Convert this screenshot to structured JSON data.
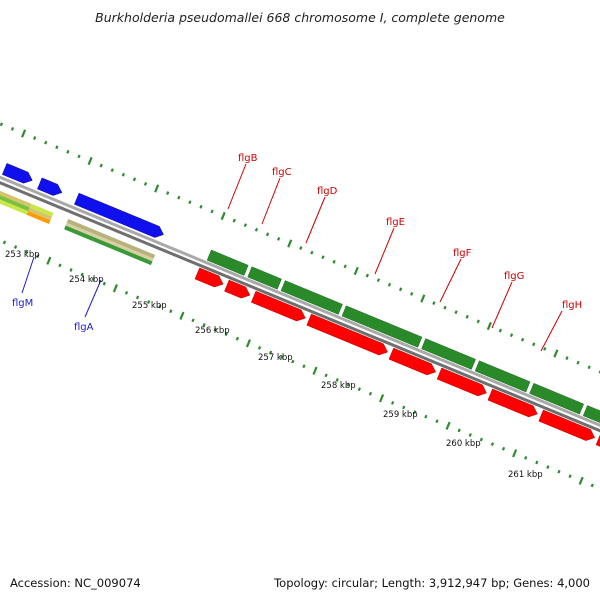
{
  "title": "Burkholderia pseudomallei 668 chromosome I, complete genome",
  "accession": "Accession: NC_009074",
  "summary": "Topology: circular; Length: 3,912,947 bp; Genes: 4,000",
  "colors": {
    "backbone": "#8f8f8f",
    "tick": "#2e8b2e",
    "forward_cds": "#2a8a2a",
    "reverse_cds": "#ff0000",
    "blue_gene": "#1010ee",
    "label_red": "#cc0000",
    "label_blue": "#1a1acc"
  },
  "scale_labels": [
    "253 kbp",
    "254 kbp",
    "255 kbp",
    "256 kbp",
    "257 kbp",
    "258 kbp",
    "259 kbp",
    "260 kbp",
    "261 kbp"
  ],
  "gene_labels": [
    {
      "text": "flgB",
      "color": "red"
    },
    {
      "text": "flgC",
      "color": "red"
    },
    {
      "text": "flgD",
      "color": "red"
    },
    {
      "text": "flgE",
      "color": "red"
    },
    {
      "text": "flgF",
      "color": "red"
    },
    {
      "text": "flgG",
      "color": "red"
    },
    {
      "text": "flgH",
      "color": "red"
    },
    {
      "text": "flgM",
      "color": "blue"
    },
    {
      "text": "flgA",
      "color": "blue"
    }
  ]
}
